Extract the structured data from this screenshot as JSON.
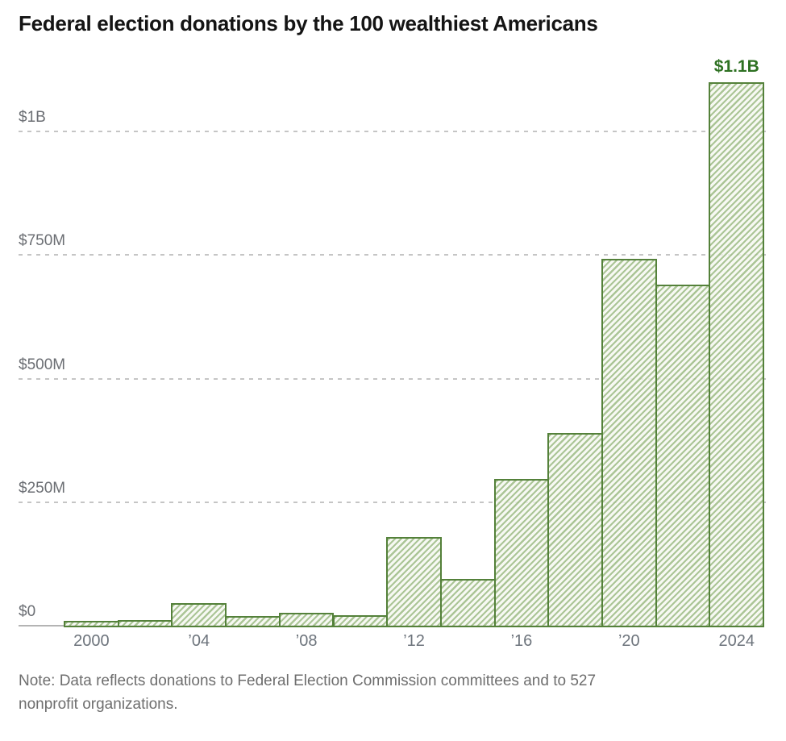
{
  "title": "Federal election donations by the 100 wealthiest Americans",
  "note": {
    "text": "Note: Data reflects donations to Federal Election Commission committees and to 527\nnonprofit organizations."
  },
  "colors": {
    "bar_border_green": "#54813a",
    "bar_hatch_green": "#6d9a4a",
    "bar_fill_light": "#f5f7f0",
    "annotation_green": "#2e7122",
    "gridline_gray": "#c5c5c5",
    "axis_gray": "#b4b4b4",
    "axis_label_gray": "#6d747c",
    "title_black": "#141414",
    "note_gray": "#6e6e6e"
  },
  "chart_data": {
    "type": "bar",
    "title": "Federal election donations by the 100 wealthiest Americans",
    "units": "USD millions",
    "x_years": [
      2000,
      2002,
      2004,
      2006,
      2008,
      2010,
      2012,
      2014,
      2016,
      2018,
      2020,
      2022,
      2024
    ],
    "values_millions_usd": [
      9,
      11,
      46,
      20,
      26,
      22,
      180,
      95,
      297,
      390,
      742,
      690,
      1100
    ],
    "x_ticks": [
      {
        "bar_index": 0,
        "label": "2000"
      },
      {
        "bar_index": 2,
        "label": "’04"
      },
      {
        "bar_index": 4,
        "label": "’08"
      },
      {
        "bar_index": 6,
        "label": "’12"
      },
      {
        "bar_index": 8,
        "label": "’16"
      },
      {
        "bar_index": 10,
        "label": "’20"
      },
      {
        "bar_index": 12,
        "label": "2024"
      }
    ],
    "y_ticks": [
      {
        "value": 0,
        "label": "$0"
      },
      {
        "value": 250,
        "label": "$250M"
      },
      {
        "value": 500,
        "label": "$500M"
      },
      {
        "value": 750,
        "label": "$750M"
      },
      {
        "value": 1000,
        "label": "$1B"
      }
    ],
    "ylim": [
      0,
      1150
    ],
    "annotation": {
      "text": "$1.1B",
      "bar_index": 12,
      "value_millions_usd": 1100
    },
    "grid": "dashed horizontal lines",
    "legend": "none",
    "bar_style": "diagonal hatch, green outline"
  }
}
